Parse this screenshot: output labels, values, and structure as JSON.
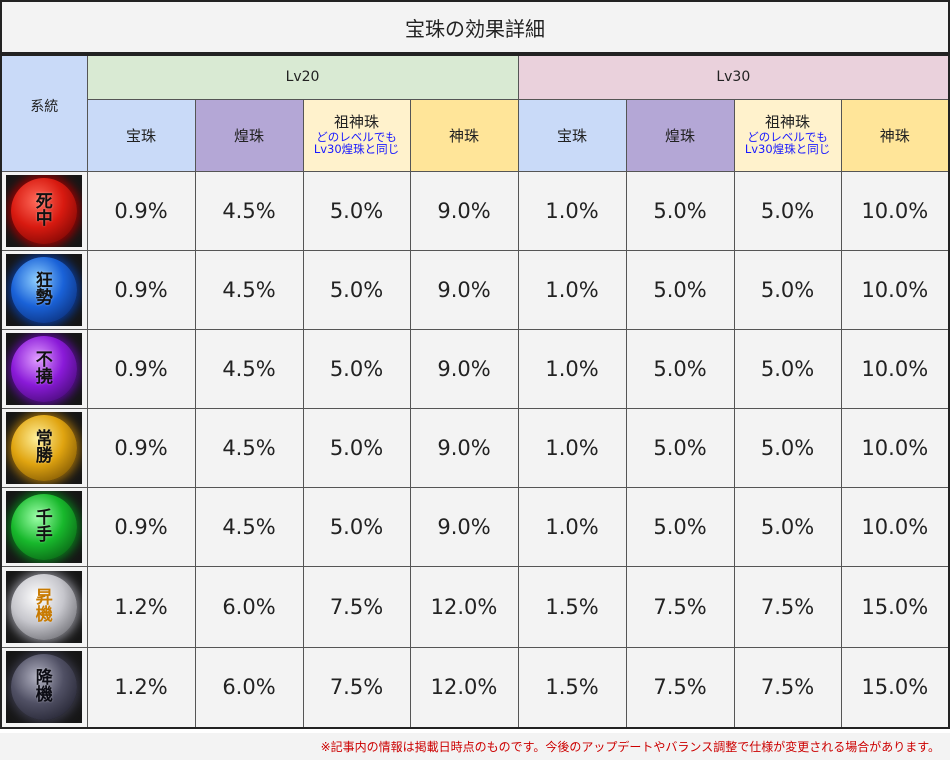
{
  "title": "宝珠の効果詳細",
  "header": {
    "system_label": "系統",
    "lv20_label": "Lv20",
    "lv30_label": "Lv30",
    "lv20_cols": {
      "houju": "宝珠",
      "kouju": "煌珠",
      "soshin": "祖神珠",
      "soshin_note_1": "どのレベルでも",
      "soshin_note_2": "Lv30煌珠と同じ",
      "shinju": "神珠"
    },
    "lv30_cols": {
      "houju": "宝珠",
      "kouju": "煌珠",
      "soshin": "祖神珠",
      "soshin_note_1": "どのレベルでも",
      "soshin_note_2": "Lv30煌珠と同じ",
      "shinju": "神珠"
    }
  },
  "rows": [
    {
      "orb_top": "死",
      "orb_bottom": "中",
      "orb_color": "red",
      "lv20": [
        "0.9%",
        "4.5%",
        "5.0%",
        "9.0%"
      ],
      "lv30": [
        "1.0%",
        "5.0%",
        "5.0%",
        "10.0%"
      ]
    },
    {
      "orb_top": "狂",
      "orb_bottom": "勢",
      "orb_color": "blue",
      "lv20": [
        "0.9%",
        "4.5%",
        "5.0%",
        "9.0%"
      ],
      "lv30": [
        "1.0%",
        "5.0%",
        "5.0%",
        "10.0%"
      ]
    },
    {
      "orb_top": "不",
      "orb_bottom": "撓",
      "orb_color": "purple",
      "lv20": [
        "0.9%",
        "4.5%",
        "5.0%",
        "9.0%"
      ],
      "lv30": [
        "1.0%",
        "5.0%",
        "5.0%",
        "10.0%"
      ]
    },
    {
      "orb_top": "常",
      "orb_bottom": "勝",
      "orb_color": "gold",
      "lv20": [
        "0.9%",
        "4.5%",
        "5.0%",
        "9.0%"
      ],
      "lv30": [
        "1.0%",
        "5.0%",
        "5.0%",
        "10.0%"
      ]
    },
    {
      "orb_top": "千",
      "orb_bottom": "手",
      "orb_color": "green",
      "lv20": [
        "0.9%",
        "4.5%",
        "5.0%",
        "9.0%"
      ],
      "lv30": [
        "1.0%",
        "5.0%",
        "5.0%",
        "10.0%"
      ]
    },
    {
      "orb_top": "昇",
      "orb_bottom": "機",
      "orb_color": "silver",
      "lv20": [
        "1.2%",
        "6.0%",
        "7.5%",
        "12.0%"
      ],
      "lv30": [
        "1.5%",
        "7.5%",
        "7.5%",
        "15.0%"
      ]
    },
    {
      "orb_top": "降",
      "orb_bottom": "機",
      "orb_color": "dark",
      "lv20": [
        "1.2%",
        "6.0%",
        "7.5%",
        "12.0%"
      ],
      "lv30": [
        "1.5%",
        "7.5%",
        "7.5%",
        "15.0%"
      ]
    }
  ],
  "footnote": "※記事内の情報は掲載日時点のものです。今後のアップデートやバランス調整で仕様が変更される場合があります。"
}
